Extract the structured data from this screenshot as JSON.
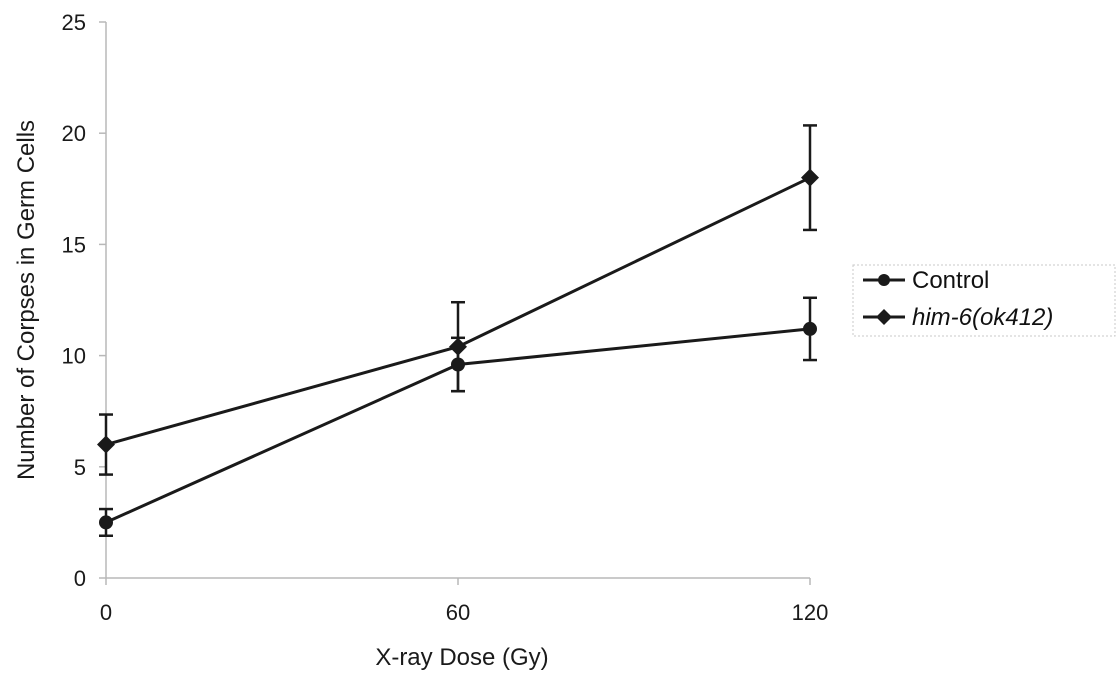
{
  "chart_data": {
    "type": "line",
    "title": "",
    "xlabel": "X-ray Dose (Gy)",
    "ylabel": "Number of Corpses in Germ Cells",
    "x": [
      0,
      60,
      120
    ],
    "x_tick_labels": [
      "0",
      "60",
      "120"
    ],
    "xlim": [
      0,
      120
    ],
    "ylim": [
      0,
      25
    ],
    "y_ticks": [
      0,
      5,
      10,
      15,
      20,
      25
    ],
    "grid": false,
    "legend_position": "right",
    "series": [
      {
        "name": "Control",
        "marker": "circle",
        "values": [
          2.5,
          9.6,
          11.2
        ],
        "error": [
          0.6,
          1.2,
          1.4
        ]
      },
      {
        "name": "him-6(ok412)",
        "marker": "diamond",
        "italic": true,
        "values": [
          6.0,
          10.4,
          18.0
        ],
        "error": [
          1.35,
          2.0,
          2.35
        ]
      }
    ],
    "colors": {
      "line": "#1a1a1a",
      "axis": "#b8b8b8",
      "legend_border": "#c8c8c8"
    }
  }
}
